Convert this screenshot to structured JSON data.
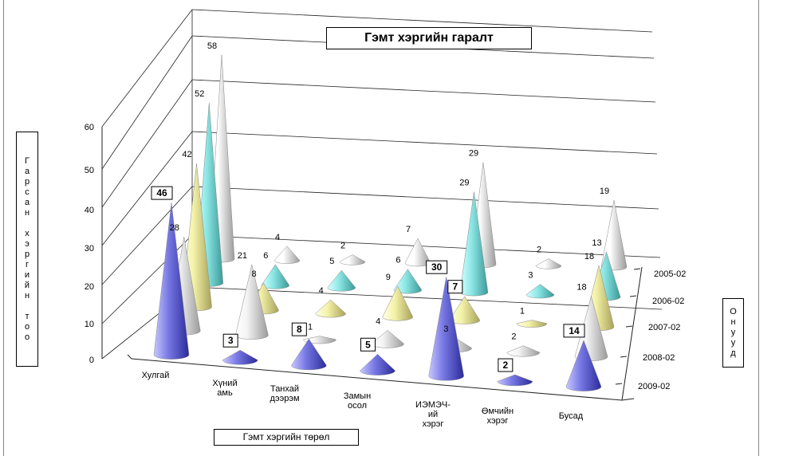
{
  "chart_data": {
    "type": "3d-cone",
    "title": "Гэмт хэргийн гаралт",
    "xlabel": "Гэмт хэргийн төрөл",
    "ylabel": "Гарсан хэргийн тоо",
    "zlabel": "Онууд",
    "ylim": [
      0,
      60
    ],
    "yticks": [
      "0",
      "10",
      "20",
      "30",
      "40",
      "50",
      "60"
    ],
    "categories": [
      [
        "Хулгай"
      ],
      [
        "Хүний",
        "амь"
      ],
      [
        "Танхай",
        "дээрэм"
      ],
      [
        "Замын",
        "осол"
      ],
      [
        "ИЭМЭЧ-",
        "ий",
        "хэрэг"
      ],
      [
        "Өмчийн",
        "хэрэг"
      ],
      [
        "Бусад"
      ]
    ],
    "series": [
      {
        "name": "2005-02",
        "color": "#f2f2f2",
        "values": [
          58,
          4,
          2,
          7,
          29,
          2,
          19
        ]
      },
      {
        "name": "2006-02",
        "color": "#8ee8e6",
        "values": [
          52,
          6,
          5,
          6,
          29,
          3,
          13
        ]
      },
      {
        "name": "2007-02",
        "color": "#f4f2a8",
        "values": [
          42,
          8,
          4,
          9,
          7,
          1,
          18
        ]
      },
      {
        "name": "2008-02",
        "color": "#f2f2f2",
        "values": [
          28,
          21,
          1,
          4,
          3,
          2,
          18
        ]
      },
      {
        "name": "2009-02",
        "color": "#7a7ae6",
        "values": [
          46,
          3,
          8,
          5,
          30,
          2,
          14
        ]
      }
    ],
    "boxed_labels": [
      [
        4,
        0
      ],
      [
        4,
        1
      ],
      [
        4,
        2
      ],
      [
        4,
        3
      ],
      [
        4,
        4
      ],
      [
        4,
        5
      ],
      [
        4,
        6
      ],
      [
        2,
        4
      ]
    ],
    "grid": true,
    "legend": "right depth axis"
  }
}
